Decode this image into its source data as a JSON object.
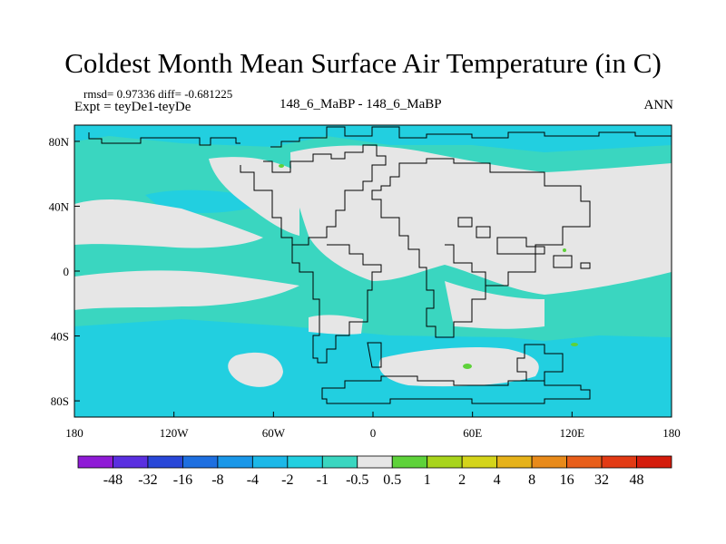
{
  "title": "Coldest Month Mean Surface Air Temperature (in C)",
  "stats_line": "rmsd= 0.97336 diff= -0.681225",
  "experiment_line": "Expt = teyDe1-teyDe",
  "center_label": "148_6_MaBP - 148_6_MaBP",
  "season_label": "ANN",
  "map": {
    "projection": "cylindrical-equidistant",
    "lon_range": [
      -180,
      180
    ],
    "lat_range": [
      -90,
      90
    ],
    "x_ticks": [
      {
        "value": -180,
        "label": "180"
      },
      {
        "value": -120,
        "label": "120W"
      },
      {
        "value": -60,
        "label": "60W"
      },
      {
        "value": 0,
        "label": "0"
      },
      {
        "value": 60,
        "label": "60E"
      },
      {
        "value": 120,
        "label": "120E"
      },
      {
        "value": 180,
        "label": "180"
      }
    ],
    "y_ticks": [
      {
        "value": 80,
        "label": "80N"
      },
      {
        "value": 40,
        "label": "40N"
      },
      {
        "value": 0,
        "label": "0"
      },
      {
        "value": -40,
        "label": "40S"
      },
      {
        "value": -80,
        "label": "80S"
      }
    ],
    "dominant_class": "-1 to -0.5",
    "neutral_class": "-0.5 to 0.5"
  },
  "colorbar": {
    "boundaries": [
      "-48",
      "-32",
      "-16",
      "-8",
      "-4",
      "-2",
      "-1",
      "-0.5",
      "0.5",
      "1",
      "2",
      "4",
      "8",
      "16",
      "32",
      "48"
    ],
    "colors": [
      "#8f1bd6",
      "#5a2fe0",
      "#2947d8",
      "#1e6fe0",
      "#1a97e8",
      "#1cb8e8",
      "#22cfe0",
      "#3ad6c0",
      "#e6e6e6",
      "#5ed23a",
      "#a8d41c",
      "#d4d41a",
      "#e6b21a",
      "#e88a1a",
      "#e85e1a",
      "#e23a14",
      "#d41c0c"
    ]
  }
}
